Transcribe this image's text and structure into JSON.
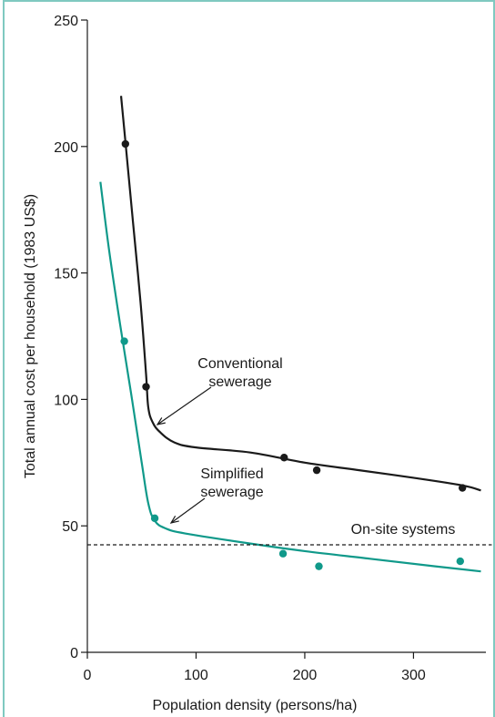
{
  "chart_data": {
    "type": "line",
    "xlabel": "Population density (persons/ha)",
    "ylabel": "Total annual cost per household (1983 US$)",
    "xlim": [
      0,
      380
    ],
    "ylim": [
      0,
      250
    ],
    "x_ticks": [
      0,
      100,
      200,
      300
    ],
    "y_ticks": [
      0,
      50,
      100,
      150,
      200,
      250
    ],
    "colors": {
      "conventional": "#1a1a1a",
      "simplified": "#10998a",
      "onsite": "#1a1a1a"
    },
    "series": [
      {
        "key": "conventional",
        "points": [
          [
            35,
            201
          ],
          [
            54,
            105
          ],
          [
            181,
            77
          ],
          [
            211,
            72
          ],
          [
            345,
            65
          ]
        ],
        "curve": [
          [
            31,
            220
          ],
          [
            35,
            202
          ],
          [
            42,
            170
          ],
          [
            49,
            138
          ],
          [
            54,
            110
          ],
          [
            56,
            97
          ],
          [
            60,
            91
          ],
          [
            67,
            87
          ],
          [
            80,
            83
          ],
          [
            100,
            81
          ],
          [
            150,
            79
          ],
          [
            200,
            75
          ],
          [
            250,
            72
          ],
          [
            300,
            69
          ],
          [
            345,
            66
          ],
          [
            362,
            64
          ]
        ]
      },
      {
        "key": "simplified",
        "points": [
          [
            34,
            123
          ],
          [
            62,
            53
          ],
          [
            180,
            39
          ],
          [
            213,
            34
          ],
          [
            343,
            36
          ]
        ],
        "curve": [
          [
            12,
            186
          ],
          [
            20,
            159
          ],
          [
            30,
            130
          ],
          [
            40,
            103
          ],
          [
            50,
            75
          ],
          [
            56,
            59
          ],
          [
            62,
            52
          ],
          [
            72,
            49
          ],
          [
            90,
            47
          ],
          [
            150,
            43
          ],
          [
            200,
            40
          ],
          [
            260,
            37
          ],
          [
            320,
            34
          ],
          [
            362,
            32
          ]
        ]
      },
      {
        "key": "onsite",
        "dashed": true,
        "curve": [
          [
            0,
            42.5
          ],
          [
            372,
            42.5
          ]
        ]
      }
    ],
    "annotations": [
      {
        "key": "conventional",
        "lines": [
          "Conventional",
          "sewerage"
        ]
      },
      {
        "key": "simplified",
        "lines": [
          "Simplified",
          "sewerage"
        ]
      },
      {
        "key": "onsite",
        "lines": [
          "On-site systems"
        ]
      }
    ]
  }
}
